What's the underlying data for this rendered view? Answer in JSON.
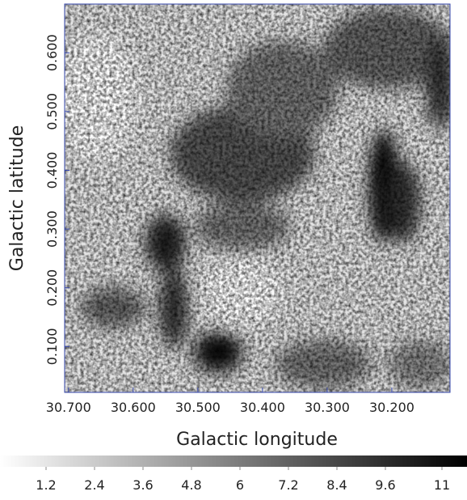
{
  "chart_data": {
    "type": "image",
    "xlabel": "Galactic longitude",
    "ylabel": "Galactic latitude",
    "xlim": [
      30.706,
      30.11
    ],
    "xticks": [
      {
        "value": 30.7,
        "label": "30.700"
      },
      {
        "value": 30.6,
        "label": "30.600"
      },
      {
        "value": 30.5,
        "label": "30.500"
      },
      {
        "value": 30.4,
        "label": "30.400"
      },
      {
        "value": 30.3,
        "label": "30.300"
      },
      {
        "value": 30.2,
        "label": "30.200"
      }
    ],
    "ylim": [
      0.022,
      0.683
    ],
    "yticks": [
      {
        "value": 0.1,
        "label": "0.100"
      },
      {
        "value": 0.2,
        "label": "0.200"
      },
      {
        "value": 0.3,
        "label": "0.300"
      },
      {
        "value": 0.4,
        "label": "0.400"
      },
      {
        "value": 0.5,
        "label": "0.500"
      },
      {
        "value": 0.6,
        "label": "0.600"
      }
    ],
    "colorbar": {
      "lim": [
        0.06,
        11.62
      ],
      "ticks": [
        1.2,
        2.4,
        3.6,
        4.8,
        6,
        7.2,
        8.4,
        9.6,
        11
      ],
      "colors": [
        "#ffffff",
        "#000000"
      ]
    }
  }
}
